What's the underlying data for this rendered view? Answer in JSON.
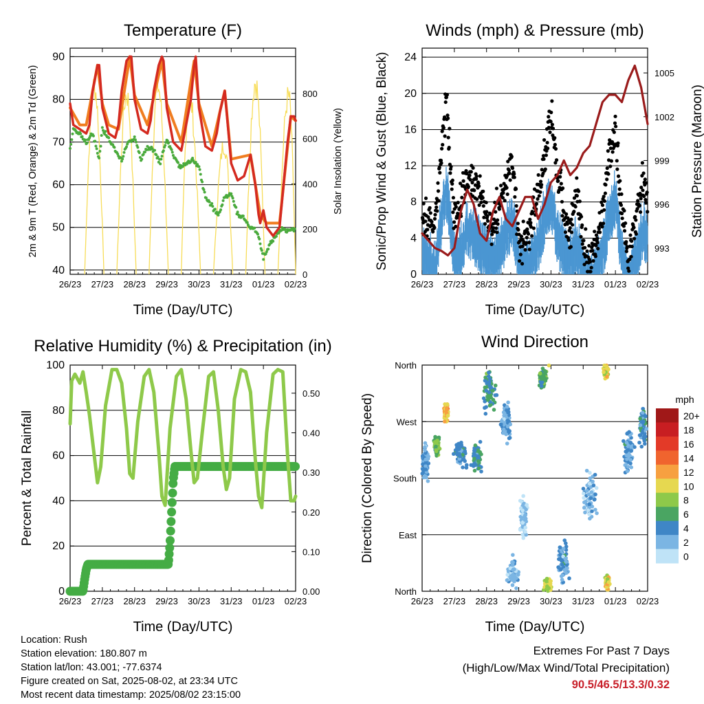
{
  "colors": {
    "temp_red": "#d42a20",
    "temp_orange": "#f07d20",
    "dewpoint_green": "#4aaa3c",
    "insolation_yellow": "#f7dc57",
    "sonic_blue": "#4b96d2",
    "gust_black": "#000000",
    "pressure_maroon": "#9a1b1b",
    "rh_lightgreen": "#8ec94a",
    "rain_green": "#44ac44",
    "extremes_red": "#c8202a"
  },
  "footer": {
    "location": "Location: Rush",
    "elevation": "Station elevation: 180.807 m",
    "latlon": "Station lat/lon: 43.001; -77.6374",
    "created": "Figure created on Sat, 2025-08-02, at 23:34 UTC",
    "timestamp": "Most recent data timestamp: 2025/08/02 23:15:00"
  },
  "extremes": {
    "title": "Extremes For Past 7 Days",
    "subtitle": "(High/Low/Max Wind/Total Precipitation)",
    "values": "90.5/46.5/13.3/0.32"
  },
  "chart_data": [
    {
      "id": "temperature",
      "type": "line",
      "title": "Temperature (F)",
      "xlabel": "Time (Day/UTC)",
      "ylabel": "2m & 9m T (Red, Orange) & 2m Td (Green)",
      "y2label": "Solar Insolation (Yellow)",
      "xticks": [
        "26/23",
        "27/23",
        "28/23",
        "29/23",
        "30/23",
        "31/23",
        "01/23",
        "02/23"
      ],
      "xlim": [
        0,
        7
      ],
      "ylim": [
        39,
        92
      ],
      "yticks": [
        40,
        50,
        60,
        70,
        80,
        90
      ],
      "y2lim": [
        0,
        1000
      ],
      "y2ticks": [
        0,
        200,
        400,
        600,
        800
      ],
      "grid": true,
      "series": [
        {
          "name": "2m T",
          "color": "#d42a20",
          "x": [
            0,
            0.1,
            0.3,
            0.5,
            0.6,
            0.7,
            0.85,
            0.9,
            1.0,
            1.2,
            1.4,
            1.5,
            1.6,
            1.75,
            1.85,
            1.9,
            2.0,
            2.2,
            2.4,
            2.5,
            2.6,
            2.75,
            2.85,
            2.9,
            3.0,
            3.2,
            3.45,
            3.6,
            3.75,
            3.85,
            3.9,
            4.0,
            4.2,
            4.4,
            4.55,
            4.65,
            4.8,
            5.0,
            5.2,
            5.4,
            5.6,
            5.75,
            5.85,
            5.9,
            6.0,
            6.1,
            6.3,
            6.5,
            6.6,
            6.75,
            6.85,
            6.95,
            7.0
          ],
          "y": [
            79,
            74,
            73,
            72,
            74,
            82,
            88,
            88,
            78,
            72,
            71,
            74,
            82,
            89,
            90,
            90,
            80,
            73,
            72,
            75,
            82,
            88,
            90,
            89,
            78,
            70,
            68,
            74,
            80,
            88,
            90,
            78,
            69,
            68,
            72,
            77,
            82,
            65,
            61,
            62,
            67,
            60,
            53,
            51,
            54,
            50,
            48,
            50,
            58,
            70,
            76,
            76,
            75
          ]
        },
        {
          "name": "9m T",
          "color": "#f07d20",
          "x": [
            0,
            0.3,
            0.5,
            0.85,
            1.0,
            1.2,
            1.5,
            1.85,
            2.0,
            2.4,
            2.85,
            3.0,
            3.45,
            3.85,
            4.0,
            4.4,
            4.8,
            5.0,
            5.6,
            5.9,
            6.1,
            6.5,
            6.85,
            7.0
          ],
          "y": [
            78,
            74,
            74,
            88,
            79,
            74,
            73,
            90,
            81,
            74,
            89,
            79,
            70,
            89,
            79,
            69,
            82,
            66,
            67,
            53,
            51,
            51,
            76,
            75
          ]
        },
        {
          "name": "2m Td",
          "color": "#4aaa3c",
          "x": [
            0,
            0.1,
            0.3,
            0.5,
            0.7,
            0.9,
            1.0,
            1.2,
            1.4,
            1.6,
            1.8,
            2.0,
            2.2,
            2.4,
            2.6,
            2.8,
            3.0,
            3.2,
            3.4,
            3.6,
            3.8,
            4.0,
            4.2,
            4.4,
            4.6,
            4.8,
            5.0,
            5.2,
            5.4,
            5.6,
            5.8,
            6.0,
            6.2,
            6.4,
            6.6,
            6.8,
            7.0
          ],
          "y": [
            68,
            73,
            72,
            70,
            72,
            66,
            73,
            71,
            68,
            66,
            70,
            71,
            66,
            69,
            68,
            65,
            71,
            67,
            64,
            65,
            66,
            64,
            57,
            55,
            53,
            57,
            58,
            53,
            52,
            50,
            49,
            43,
            46,
            48,
            50,
            49,
            50
          ]
        }
      ],
      "series2": [
        {
          "name": "Solar Insolation",
          "color": "#f7dc57",
          "peaks": [
            {
              "x_start": 0.45,
              "x_peak": 0.75,
              "x_end": 1.05,
              "value": 900
            },
            {
              "x_start": 1.45,
              "x_peak": 1.75,
              "x_end": 2.05,
              "value": 860
            },
            {
              "x_start": 2.45,
              "x_peak": 2.72,
              "x_end": 3.05,
              "value": 900
            },
            {
              "x_start": 3.45,
              "x_peak": 3.7,
              "x_end": 4.05,
              "value": 850
            },
            {
              "x_start": 4.45,
              "x_peak": 4.78,
              "x_end": 5.05,
              "value": 620
            },
            {
              "x_start": 5.45,
              "x_peak": 5.75,
              "x_end": 6.05,
              "value": 920
            },
            {
              "x_start": 6.45,
              "x_peak": 6.78,
              "x_end": 7.0,
              "value": 850
            }
          ]
        }
      ]
    },
    {
      "id": "winds",
      "type": "line",
      "title": "Winds (mph) & Pressure (mb)",
      "xlabel": "Time (Day/UTC)",
      "ylabel": "Sonic/Prop Wind & Gust (Blue, Black)",
      "y2label": "Station Pressure (Maroon)",
      "xticks": [
        "26/23",
        "27/23",
        "28/23",
        "29/23",
        "30/23",
        "31/23",
        "01/23",
        "02/23"
      ],
      "xlim": [
        0,
        7
      ],
      "ylim": [
        0,
        25
      ],
      "yticks": [
        0,
        4,
        8,
        12,
        16,
        20,
        24
      ],
      "y2lim": [
        991.2,
        1006.7
      ],
      "y2ticks": [
        993,
        996,
        999,
        1002,
        1005
      ],
      "grid": true,
      "series": [
        {
          "name": "Sonic/Prop Wind",
          "color": "#4b96d2",
          "x": [
            0,
            0.2,
            0.4,
            0.6,
            0.75,
            0.9,
            1.0,
            1.2,
            1.4,
            1.6,
            1.8,
            2.0,
            2.2,
            2.4,
            2.6,
            2.8,
            3.0,
            3.2,
            3.4,
            3.6,
            3.8,
            4.0,
            4.2,
            4.4,
            4.6,
            4.8,
            5.0,
            5.2,
            5.4,
            5.6,
            5.8,
            6.0,
            6.2,
            6.4,
            6.6,
            6.8,
            7.0
          ],
          "y": [
            4,
            3,
            2,
            8,
            11,
            7,
            3,
            4,
            7,
            6,
            5,
            4,
            3,
            4,
            6,
            8,
            3,
            2,
            3,
            5,
            8,
            10,
            6,
            4,
            3,
            5,
            2,
            1,
            2,
            4,
            8,
            10,
            4,
            1,
            3,
            6,
            6
          ]
        },
        {
          "name": "Gust",
          "color": "#000000",
          "x": [
            0,
            0.2,
            0.4,
            0.6,
            0.75,
            0.9,
            1.0,
            1.2,
            1.4,
            1.6,
            1.8,
            2.0,
            2.2,
            2.4,
            2.6,
            2.8,
            3.0,
            3.2,
            3.4,
            3.6,
            3.8,
            4.0,
            4.2,
            4.4,
            4.6,
            4.8,
            5.0,
            5.2,
            5.4,
            5.6,
            5.8,
            6.0,
            6.2,
            6.4,
            6.6,
            6.8,
            7.0
          ],
          "y": [
            7,
            5,
            6,
            14,
            19,
            12,
            6,
            8,
            11,
            10,
            9,
            7,
            5,
            8,
            10,
            13,
            4,
            3,
            6,
            9,
            13,
            18,
            11,
            7,
            5,
            9,
            3,
            2,
            3,
            7,
            13,
            16,
            7,
            2,
            5,
            10,
            9
          ]
        }
      ],
      "series2": [
        {
          "name": "Station Pressure",
          "color": "#9a1b1b",
          "x": [
            0,
            0.2,
            0.4,
            0.6,
            0.8,
            1.0,
            1.2,
            1.4,
            1.6,
            1.8,
            2.0,
            2.2,
            2.4,
            2.6,
            2.8,
            3.0,
            3.2,
            3.4,
            3.6,
            3.8,
            4.0,
            4.2,
            4.4,
            4.6,
            4.8,
            5.0,
            5.2,
            5.4,
            5.6,
            5.8,
            6.0,
            6.2,
            6.4,
            6.6,
            6.8,
            7.0
          ],
          "y": [
            994,
            993.5,
            993,
            992.8,
            992.5,
            993,
            995.5,
            997,
            996,
            994,
            993.5,
            995.5,
            996.5,
            995,
            994.5,
            995.5,
            996.5,
            996.5,
            995,
            996,
            997.5,
            998,
            999,
            998,
            998.5,
            999.5,
            1000,
            1001.5,
            1003,
            1003.5,
            1003.5,
            1003,
            1004.5,
            1005.5,
            1004,
            1001.5
          ]
        }
      ]
    },
    {
      "id": "humidity",
      "type": "line",
      "title": "Relative Humidity (%) & Precipitation (in)",
      "xlabel": "Time (Day/UTC)",
      "ylabel": "Percent & Total Rainfall",
      "xticks": [
        "26/23",
        "27/23",
        "28/23",
        "29/23",
        "30/23",
        "31/23",
        "01/23",
        "02/23"
      ],
      "xlim": [
        0,
        7
      ],
      "ylim": [
        0,
        100
      ],
      "yticks": [
        0,
        20,
        40,
        60,
        80,
        100
      ],
      "y2lim": [
        0,
        0.571
      ],
      "y2ticks": [
        0.0,
        0.1,
        0.2,
        0.3,
        0.4,
        0.5
      ],
      "grid": true,
      "series": [
        {
          "name": "Relative Humidity",
          "color": "#8ec94a",
          "x": [
            0,
            0.05,
            0.15,
            0.3,
            0.4,
            0.5,
            0.6,
            0.75,
            0.85,
            0.95,
            1.1,
            1.3,
            1.45,
            1.6,
            1.75,
            1.85,
            1.95,
            2.1,
            2.3,
            2.45,
            2.6,
            2.75,
            2.85,
            2.95,
            3.1,
            3.3,
            3.45,
            3.6,
            3.75,
            3.85,
            3.95,
            4.1,
            4.3,
            4.45,
            4.6,
            4.75,
            4.85,
            4.95,
            5.1,
            5.3,
            5.45,
            5.6,
            5.75,
            5.85,
            5.95,
            6.1,
            6.3,
            6.45,
            6.6,
            6.75,
            6.85,
            6.95,
            7.0
          ],
          "y": [
            74,
            93,
            96,
            92,
            97,
            88,
            78,
            60,
            48,
            55,
            82,
            98,
            98,
            92,
            72,
            52,
            50,
            75,
            95,
            98,
            88,
            62,
            42,
            38,
            72,
            95,
            98,
            85,
            62,
            48,
            50,
            70,
            95,
            97,
            80,
            55,
            45,
            50,
            85,
            98,
            97,
            88,
            58,
            42,
            37,
            70,
            96,
            98,
            97,
            60,
            40,
            40,
            42
          ]
        }
      ],
      "series2": [
        {
          "name": "Total Rainfall",
          "color": "#44ac44",
          "x": [
            0,
            0.4,
            0.45,
            0.5,
            0.55,
            3.05,
            3.1,
            3.15,
            3.2,
            3.25,
            7.0
          ],
          "y": [
            0.0,
            0.0,
            0.03,
            0.055,
            0.068,
            0.068,
            0.12,
            0.2,
            0.28,
            0.315,
            0.315
          ]
        }
      ]
    },
    {
      "id": "wind_direction",
      "type": "scatter",
      "title": "Wind Direction",
      "xlabel": "Time (Day/UTC)",
      "ylabel": "Direction (Colored By Speed)",
      "xticks": [
        "26/23",
        "27/23",
        "28/23",
        "29/23",
        "30/23",
        "31/23",
        "01/23",
        "02/23"
      ],
      "xlim": [
        0,
        7
      ],
      "ylim": [
        0,
        360
      ],
      "yticks": [
        "North",
        "East",
        "South",
        "West",
        "North"
      ],
      "grid": true,
      "colorbar": {
        "title": "mph",
        "labels": [
          "20+",
          "18",
          "16",
          "14",
          "12",
          "10",
          "8",
          "6",
          "4",
          "2",
          "0"
        ],
        "colors": [
          "#a01818",
          "#c81e22",
          "#e33a28",
          "#f0642e",
          "#f7a040",
          "#e6d850",
          "#8ec94a",
          "#4aa562",
          "#3f86c6",
          "#7bb5e3",
          "#bfe3f7"
        ]
      },
      "clusters": [
        {
          "x": 0.1,
          "dir": 200,
          "spread_x": 0.15,
          "spread_d": 40,
          "speed": 3
        },
        {
          "x": 0.45,
          "dir": 230,
          "spread_x": 0.12,
          "spread_d": 20,
          "speed": 7
        },
        {
          "x": 0.75,
          "dir": 285,
          "spread_x": 0.1,
          "spread_d": 20,
          "speed": 11
        },
        {
          "x": 1.2,
          "dir": 220,
          "spread_x": 0.25,
          "spread_d": 30,
          "speed": 4
        },
        {
          "x": 1.7,
          "dir": 215,
          "spread_x": 0.2,
          "spread_d": 30,
          "speed": 5
        },
        {
          "x": 2.1,
          "dir": 320,
          "spread_x": 0.3,
          "spread_d": 40,
          "speed": 5
        },
        {
          "x": 2.6,
          "dir": 270,
          "spread_x": 0.2,
          "spread_d": 40,
          "speed": 3
        },
        {
          "x": 2.8,
          "dir": 30,
          "spread_x": 0.25,
          "spread_d": 30,
          "speed": 2
        },
        {
          "x": 3.15,
          "dir": 120,
          "spread_x": 0.15,
          "spread_d": 50,
          "speed": 1
        },
        {
          "x": 3.75,
          "dir": 340,
          "spread_x": 0.15,
          "spread_d": 20,
          "speed": 6
        },
        {
          "x": 3.9,
          "dir": 10,
          "spread_x": 0.15,
          "spread_d": 15,
          "speed": 9
        },
        {
          "x": 4.4,
          "dir": 45,
          "spread_x": 0.25,
          "spread_d": 45,
          "speed": 3
        },
        {
          "x": 5.2,
          "dir": 150,
          "spread_x": 0.3,
          "spread_d": 60,
          "speed": 2
        },
        {
          "x": 5.7,
          "dir": 350,
          "spread_x": 0.1,
          "spread_d": 15,
          "speed": 10
        },
        {
          "x": 5.75,
          "dir": 15,
          "spread_x": 0.1,
          "spread_d": 15,
          "speed": 10
        },
        {
          "x": 6.4,
          "dir": 220,
          "spread_x": 0.2,
          "spread_d": 50,
          "speed": 3
        },
        {
          "x": 6.85,
          "dir": 260,
          "spread_x": 0.15,
          "spread_d": 40,
          "speed": 4
        }
      ]
    }
  ]
}
